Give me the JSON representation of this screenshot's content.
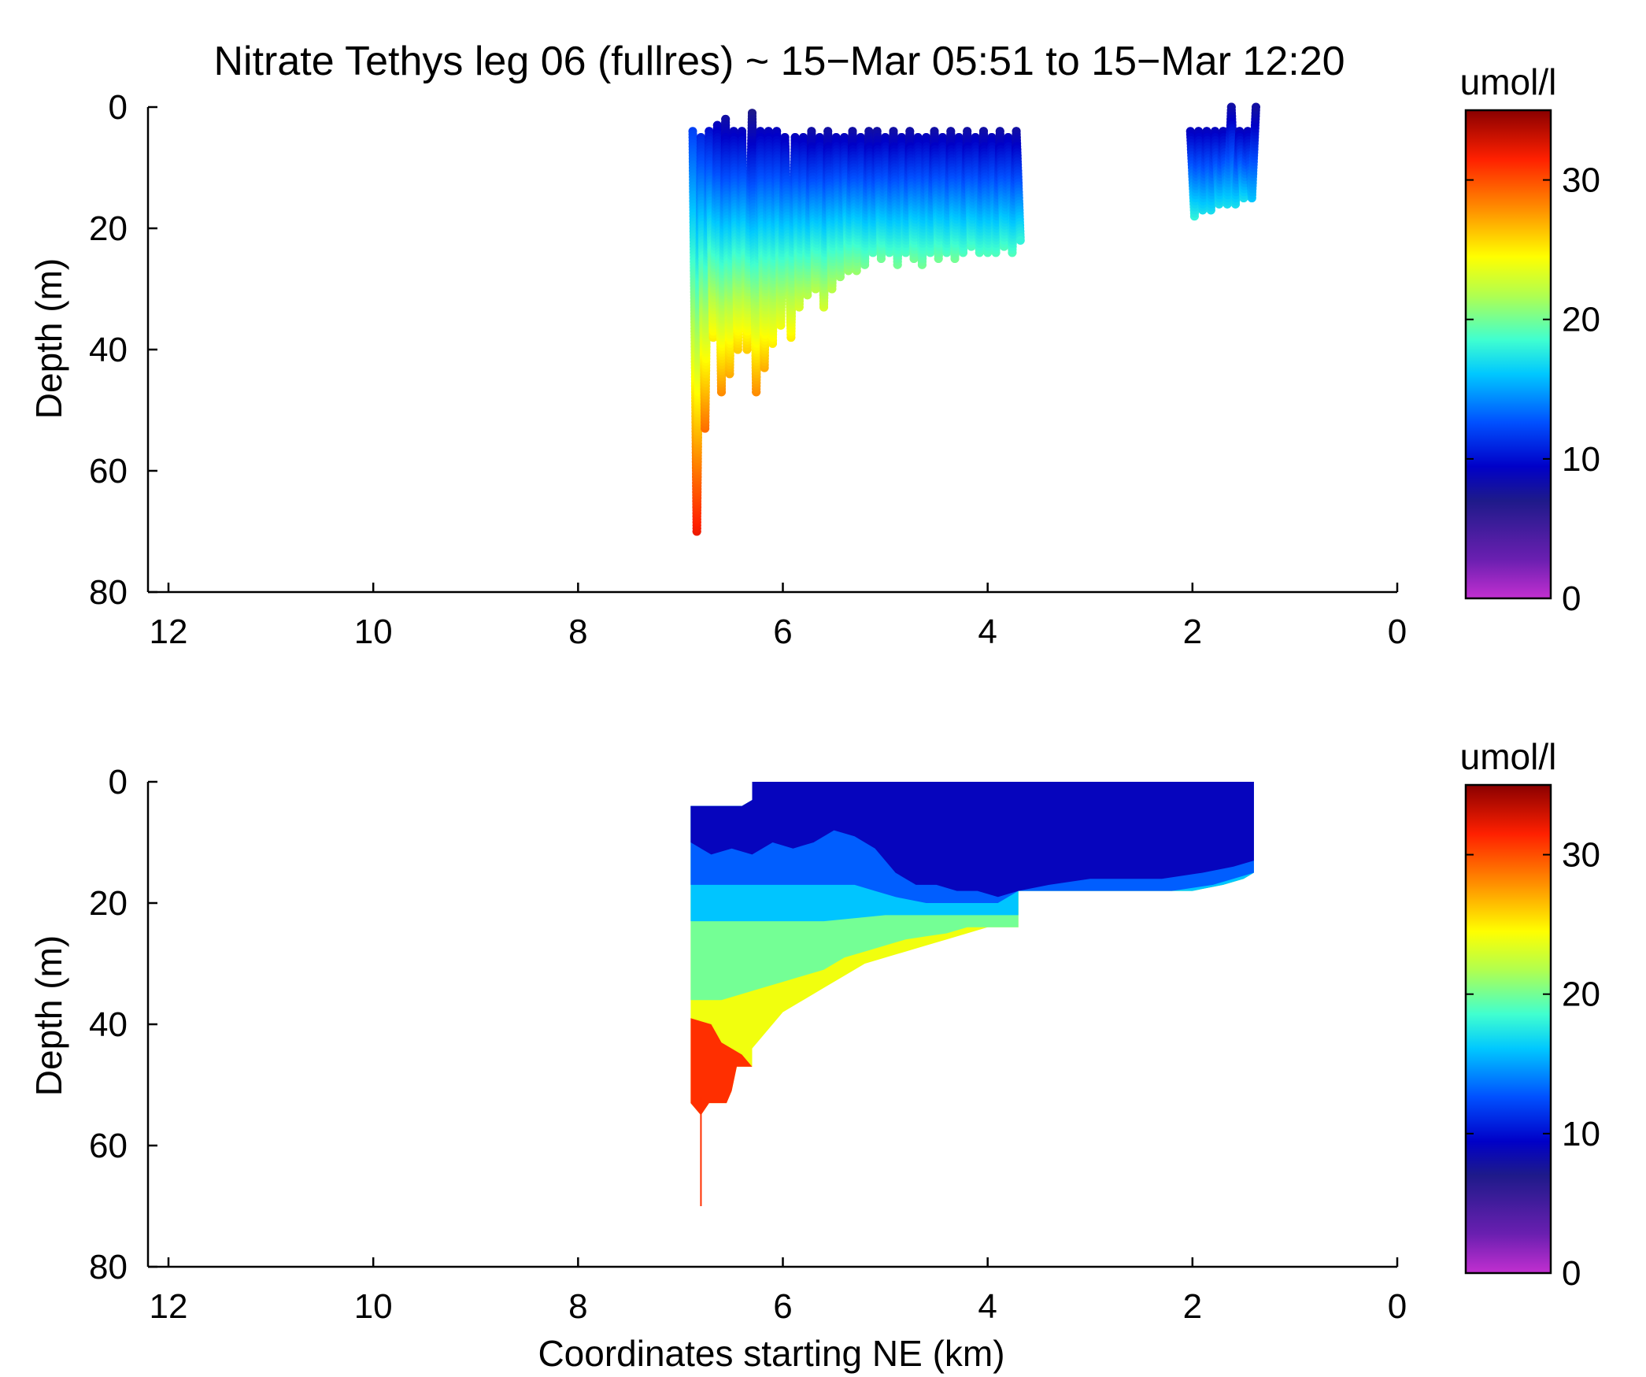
{
  "chart_data": [
    {
      "type": "scatter",
      "title": "Nitrate Tethys leg 06 (fullres) ~ 15−Mar 05:51 to 15−Mar 12:20",
      "xlabel": "",
      "ylabel": "Depth (m)",
      "xlim": [
        12.2,
        0
      ],
      "ylim": [
        0,
        80
      ],
      "x_reversed": true,
      "y_reversed": true,
      "x_ticks": [
        12,
        10,
        8,
        6,
        4,
        2,
        0
      ],
      "y_ticks": [
        0,
        20,
        40,
        60,
        80
      ],
      "x_tick_labels": [
        "12",
        "10",
        "8",
        "6",
        "4",
        "2",
        "0"
      ],
      "y_tick_labels": [
        "0",
        "20",
        "40",
        "60",
        "80"
      ],
      "colorbar": {
        "label": "umol/l",
        "min": 0,
        "max": 35,
        "ticks": [
          0,
          10,
          20,
          30
        ],
        "tick_labels": [
          "0",
          "10",
          "20",
          "30"
        ],
        "colormap": "jet-magenta"
      },
      "series": [
        {
          "x": [
            6.88,
            6.84,
            6.8,
            6.76,
            6.72,
            6.68,
            6.64,
            6.6,
            6.56,
            6.52,
            6.48,
            6.44,
            6.4,
            6.35,
            6.3,
            6.26,
            6.22,
            6.18,
            6.14,
            6.1,
            6.06,
            6.02,
            5.98,
            5.92,
            5.88,
            5.84,
            5.8,
            5.76,
            5.72,
            5.68,
            5.64,
            5.6,
            5.56,
            5.52,
            5.48,
            5.44,
            5.4,
            5.36,
            5.32,
            5.28,
            5.24,
            5.2,
            5.16,
            5.12,
            5.08,
            5.04,
            5.0,
            4.96,
            4.92,
            4.88,
            4.84,
            4.8,
            4.76,
            4.72,
            4.68,
            4.64,
            4.6,
            4.56,
            4.52,
            4.48,
            4.44,
            4.4,
            4.36,
            4.32,
            4.28,
            4.24,
            4.2,
            4.16,
            4.12,
            4.08,
            4.04,
            4.0,
            3.96,
            3.92,
            3.88,
            3.84,
            3.8,
            3.76,
            3.72,
            3.68
          ],
          "y": [
            4,
            70,
            5,
            53,
            4,
            38,
            3,
            47,
            2,
            44,
            4,
            40,
            4,
            40,
            1,
            47,
            4,
            43,
            4,
            39,
            4,
            36,
            5,
            38,
            5,
            33,
            5,
            31,
            4,
            30,
            5,
            33,
            4,
            30,
            5,
            28,
            5,
            27,
            4,
            27,
            5,
            26,
            4,
            24,
            4,
            25,
            5,
            24,
            4,
            26,
            5,
            24,
            4,
            25,
            5,
            26,
            5,
            24,
            4,
            25,
            5,
            24,
            4,
            25,
            5,
            24,
            4,
            23,
            5,
            24,
            4,
            24,
            5,
            24,
            4,
            23,
            5,
            24,
            4,
            22
          ],
          "z": [
            12,
            32,
            11,
            29,
            10,
            25,
            9,
            28,
            8,
            27,
            9,
            26,
            9,
            26,
            7,
            28,
            9,
            27,
            9,
            25,
            9,
            24,
            9,
            25,
            9,
            23,
            9,
            22,
            8,
            22,
            9,
            23,
            8,
            22,
            9,
            21,
            9,
            21,
            8,
            21,
            9,
            20,
            8,
            19,
            8,
            20,
            9,
            19,
            8,
            20,
            9,
            19,
            8,
            20,
            9,
            20,
            9,
            19,
            8,
            20,
            9,
            19,
            8,
            20,
            9,
            19,
            8,
            19,
            9,
            19,
            8,
            19,
            9,
            19,
            8,
            19,
            9,
            19,
            8,
            18
          ]
        },
        {
          "x": [
            2.02,
            1.98,
            1.94,
            1.9,
            1.86,
            1.82,
            1.78,
            1.74,
            1.7,
            1.66,
            1.62,
            1.58,
            1.54,
            1.5,
            1.46,
            1.42,
            1.38
          ],
          "y": [
            4,
            18,
            4,
            17,
            4,
            17,
            4,
            16,
            4,
            16,
            0,
            16,
            4,
            15,
            4,
            15,
            0
          ],
          "z": [
            9,
            18,
            9,
            17,
            9,
            17,
            9,
            17,
            9,
            17,
            8,
            17,
            9,
            17,
            9,
            16,
            8
          ]
        }
      ]
    },
    {
      "type": "heatmap",
      "title": "",
      "xlabel": "Coordinates starting NE (km)",
      "ylabel": "Depth (m)",
      "xlim": [
        12.2,
        0
      ],
      "ylim": [
        0,
        80
      ],
      "x_reversed": true,
      "y_reversed": true,
      "x_ticks": [
        12,
        10,
        8,
        6,
        4,
        2,
        0
      ],
      "y_ticks": [
        0,
        20,
        40,
        60,
        80
      ],
      "x_tick_labels": [
        "12",
        "10",
        "8",
        "6",
        "4",
        "2",
        "0"
      ],
      "y_tick_labels": [
        "0",
        "20",
        "40",
        "60",
        "80"
      ],
      "colorbar": {
        "label": "umol/l",
        "min": 0,
        "max": 35,
        "ticks": [
          0,
          10,
          20,
          30
        ],
        "tick_labels": [
          "0",
          "10",
          "20",
          "30"
        ],
        "colormap": "jet-magenta"
      },
      "layers": [
        {
          "value": 24,
          "region": [
            [
              6.9,
              4
            ],
            [
              6.4,
              4
            ],
            [
              6.3,
              3
            ],
            [
              6.3,
              0
            ],
            [
              1.4,
              0
            ],
            [
              1.4,
              15
            ],
            [
              1.5,
              16
            ],
            [
              1.7,
              17
            ],
            [
              2.0,
              18
            ],
            [
              3.7,
              18
            ],
            [
              3.7,
              24
            ],
            [
              4.0,
              24
            ],
            [
              4.2,
              25
            ],
            [
              4.4,
              26
            ],
            [
              4.6,
              27
            ],
            [
              4.8,
              28
            ],
            [
              5.0,
              29
            ],
            [
              5.2,
              30
            ],
            [
              5.4,
              32
            ],
            [
              5.6,
              34
            ],
            [
              5.8,
              36
            ],
            [
              6.0,
              38
            ],
            [
              6.1,
              40
            ],
            [
              6.2,
              42
            ],
            [
              6.3,
              44
            ],
            [
              6.3,
              47
            ],
            [
              6.45,
              47
            ],
            [
              6.5,
              51
            ],
            [
              6.55,
              53
            ],
            [
              6.72,
              53
            ],
            [
              6.8,
              55
            ],
            [
              6.9,
              53
            ]
          ]
        },
        {
          "value": 20,
          "region": [
            [
              6.9,
              4
            ],
            [
              6.4,
              4
            ],
            [
              6.3,
              3
            ],
            [
              6.3,
              0
            ],
            [
              1.4,
              0
            ],
            [
              1.4,
              15
            ],
            [
              1.5,
              16
            ],
            [
              1.7,
              17
            ],
            [
              2.0,
              18
            ],
            [
              3.7,
              18
            ],
            [
              3.7,
              24
            ],
            [
              4.0,
              24
            ],
            [
              4.2,
              24
            ],
            [
              4.4,
              25
            ],
            [
              4.6,
              25.5
            ],
            [
              4.8,
              26
            ],
            [
              5.0,
              27
            ],
            [
              5.2,
              28
            ],
            [
              5.4,
              29
            ],
            [
              5.6,
              31
            ],
            [
              5.8,
              32
            ],
            [
              6.0,
              33
            ],
            [
              6.2,
              34
            ],
            [
              6.4,
              35
            ],
            [
              6.6,
              36
            ],
            [
              6.9,
              36
            ]
          ]
        },
        {
          "value": 16,
          "region": [
            [
              6.9,
              4
            ],
            [
              6.4,
              4
            ],
            [
              6.3,
              3
            ],
            [
              6.3,
              0
            ],
            [
              1.4,
              0
            ],
            [
              1.4,
              15
            ],
            [
              1.5,
              16
            ],
            [
              1.7,
              17
            ],
            [
              2.0,
              18
            ],
            [
              3.7,
              18
            ],
            [
              3.7,
              22
            ],
            [
              4.0,
              22
            ],
            [
              4.2,
              22
            ],
            [
              4.5,
              22
            ],
            [
              4.8,
              22
            ],
            [
              5.0,
              22
            ],
            [
              5.3,
              22.5
            ],
            [
              5.6,
              23
            ],
            [
              5.9,
              23
            ],
            [
              6.2,
              23
            ],
            [
              6.5,
              23
            ],
            [
              6.9,
              23
            ]
          ]
        },
        {
          "value": 13,
          "region": [
            [
              6.9,
              4
            ],
            [
              6.4,
              4
            ],
            [
              6.3,
              3
            ],
            [
              6.3,
              0
            ],
            [
              1.4,
              0
            ],
            [
              1.4,
              15
            ],
            [
              1.8,
              17
            ],
            [
              2.2,
              18
            ],
            [
              3.7,
              18
            ],
            [
              3.9,
              20
            ],
            [
              4.1,
              20
            ],
            [
              4.3,
              20
            ],
            [
              4.6,
              20
            ],
            [
              4.9,
              19
            ],
            [
              5.1,
              18
            ],
            [
              5.3,
              17
            ],
            [
              5.6,
              17
            ],
            [
              5.9,
              17
            ],
            [
              6.2,
              17
            ],
            [
              6.5,
              17
            ],
            [
              6.9,
              17
            ]
          ]
        },
        {
          "value": 9,
          "region": [
            [
              6.9,
              4
            ],
            [
              6.4,
              4
            ],
            [
              6.3,
              3
            ],
            [
              6.3,
              0
            ],
            [
              1.4,
              0
            ],
            [
              1.4,
              13
            ],
            [
              1.6,
              14
            ],
            [
              1.9,
              15
            ],
            [
              2.3,
              16
            ],
            [
              2.6,
              16
            ],
            [
              3.0,
              16
            ],
            [
              3.4,
              17
            ],
            [
              3.7,
              18
            ],
            [
              3.9,
              19
            ],
            [
              4.1,
              18
            ],
            [
              4.3,
              18
            ],
            [
              4.5,
              17
            ],
            [
              4.7,
              17
            ],
            [
              4.9,
              15
            ],
            [
              5.1,
              11
            ],
            [
              5.3,
              9
            ],
            [
              5.5,
              8
            ],
            [
              5.7,
              10
            ],
            [
              5.9,
              11
            ],
            [
              6.1,
              10
            ],
            [
              6.3,
              12
            ],
            [
              6.5,
              11
            ],
            [
              6.7,
              12
            ],
            [
              6.9,
              10
            ]
          ]
        },
        {
          "value": 31,
          "region": [
            [
              6.9,
              39
            ],
            [
              6.7,
              40
            ],
            [
              6.6,
              43
            ],
            [
              6.4,
              45
            ],
            [
              6.3,
              47
            ],
            [
              6.45,
              47
            ],
            [
              6.5,
              51
            ],
            [
              6.55,
              53
            ],
            [
              6.72,
              53
            ],
            [
              6.8,
              55
            ],
            [
              6.9,
              53
            ]
          ]
        }
      ],
      "spikes": [
        {
          "x": 6.8,
          "y0": 52,
          "y1": 70,
          "value": 31
        }
      ]
    }
  ]
}
